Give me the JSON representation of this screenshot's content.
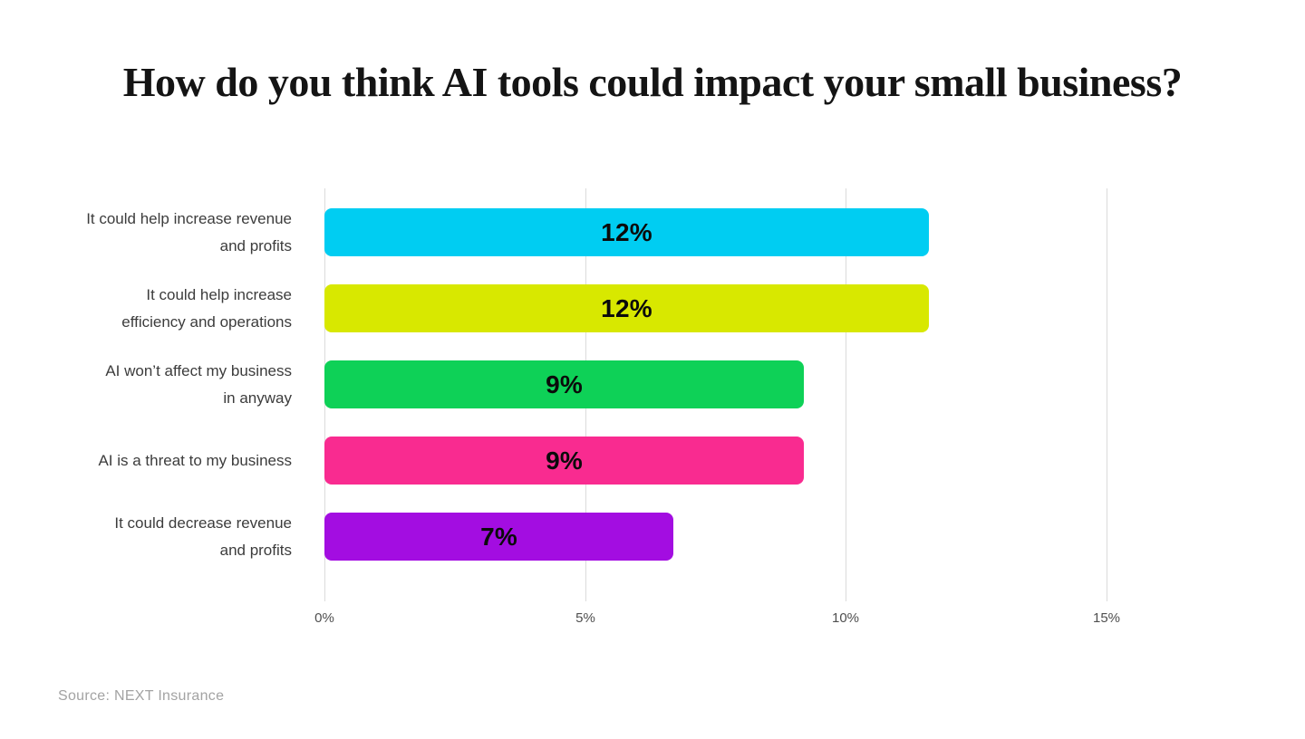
{
  "chart": {
    "title": "How do you think AI tools could impact your small business?",
    "source": "Source: NEXT Insurance",
    "rows": [
      {
        "label_line1": "It could help increase revenue",
        "label_line2": "and profits",
        "value": 12,
        "value_label": "12%",
        "color": "#00CDF2",
        "plot_pct": 11.6
      },
      {
        "label_line1": "It could help increase",
        "label_line2": "efficiency and operations",
        "value": 12,
        "value_label": "12%",
        "color": "#D8E800",
        "plot_pct": 11.6
      },
      {
        "label_line1": "AI won’t affect my business",
        "label_line2": "in anyway",
        "value": 9,
        "value_label": "9%",
        "color": "#0ED157",
        "plot_pct": 9.2
      },
      {
        "label_line1": "AI is a threat to my business",
        "label_line2": "",
        "value": 9,
        "value_label": "9%",
        "color": "#F92B90",
        "plot_pct": 9.2
      },
      {
        "label_line1": "It could decrease revenue",
        "label_line2": "and profits",
        "value": 7,
        "value_label": "7%",
        "color": "#A30DE1",
        "plot_pct": 6.7
      }
    ],
    "x_ticks": [
      {
        "value": 0,
        "label": "0%"
      },
      {
        "value": 5,
        "label": "5%"
      },
      {
        "value": 10,
        "label": "10%"
      },
      {
        "value": 15,
        "label": "15%"
      }
    ]
  },
  "chart_data": {
    "type": "bar",
    "orientation": "horizontal",
    "title": "How do you think AI tools could impact your small business?",
    "categories": [
      "It could help increase revenue and profits",
      "It could help increase efficiency and operations",
      "AI won’t affect my business in anyway",
      "AI is a threat to my business",
      "It could decrease revenue and profits"
    ],
    "values": [
      12,
      12,
      9,
      9,
      7
    ],
    "data_labels": [
      "12%",
      "12%",
      "9%",
      "9%",
      "7%"
    ],
    "bar_colors": [
      "#00CDF2",
      "#D8E800",
      "#0ED157",
      "#F92B90",
      "#A30DE1"
    ],
    "xlabel": "",
    "ylabel": "",
    "x_tick_labels": [
      "0%",
      "5%",
      "10%",
      "15%"
    ],
    "xlim": [
      0,
      16
    ],
    "grid": "vertical-gridlines-behind-bars",
    "legend": "none",
    "data_label_position": "center-of-bar",
    "source": "Source: NEXT Insurance"
  }
}
